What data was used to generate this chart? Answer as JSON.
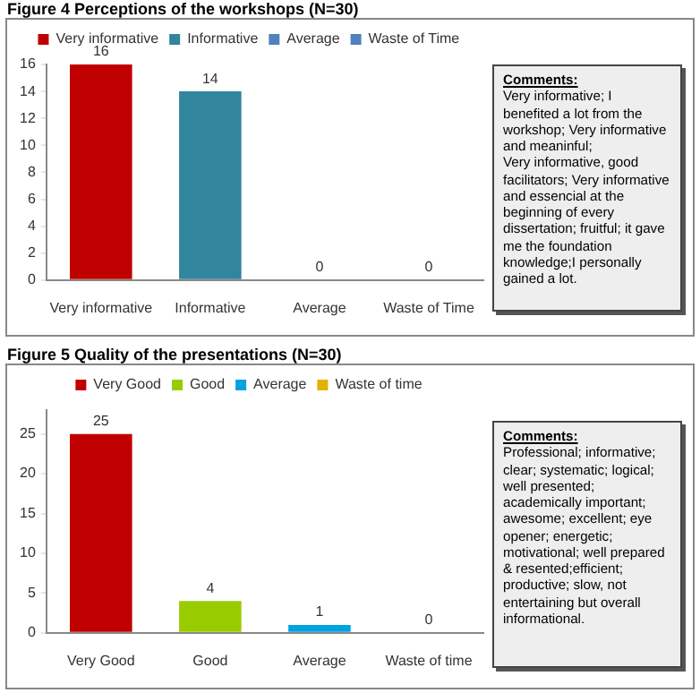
{
  "chart_data": [
    {
      "type": "bar",
      "title": "Figure 4 Perceptions of the workshops (N=30)",
      "categories": [
        "Very informative",
        "Informative",
        "Average",
        "Waste of Time"
      ],
      "series": [
        {
          "name": "Very informative",
          "color": "#c00000",
          "values": [
            16,
            null,
            null,
            null
          ]
        },
        {
          "name": "Informative",
          "color": "#31859c",
          "values": [
            null,
            14,
            null,
            null
          ]
        },
        {
          "name": "Average",
          "color": "#4f81bd",
          "values": [
            null,
            null,
            0,
            null
          ]
        },
        {
          "name": "Waste of Time",
          "color": "#4f81bd",
          "values": [
            null,
            null,
            null,
            0
          ]
        }
      ],
      "ylim": [
        0,
        16
      ],
      "yticks": [
        0,
        2,
        4,
        6,
        8,
        10,
        12,
        14,
        16
      ],
      "grid": false,
      "legend": "top",
      "data_labels": true,
      "annotations": [
        "Comments:",
        "Very informative; I benefited a lot from the workshop; Very informative and meaninful;",
        "Very informative, good facilitators; Very informative and essencial at the beginning of every dissertation; fruitful;  it gave me the foundation knowledge;I personally gained a lot."
      ]
    },
    {
      "type": "bar",
      "title": "Figure 5 Quality of the presentations (N=30)",
      "categories": [
        "Very Good",
        "Good",
        "Average",
        "Waste of time"
      ],
      "series": [
        {
          "name": "Very Good",
          "color": "#c00000",
          "values": [
            25,
            null,
            null,
            null
          ]
        },
        {
          "name": "Good",
          "color": "#99cc00",
          "values": [
            null,
            4,
            null,
            null
          ]
        },
        {
          "name": "Average",
          "color": "#00a2e0",
          "values": [
            null,
            null,
            1,
            null
          ]
        },
        {
          "name": "Waste of time",
          "color": "#e6b000",
          "values": [
            null,
            null,
            null,
            0
          ]
        }
      ],
      "ylim": [
        0,
        28
      ],
      "yticks": [
        0,
        5,
        10,
        15,
        20,
        25
      ],
      "grid": false,
      "legend": "top",
      "data_labels": true,
      "annotations": [
        "Comments:",
        "Professional; informative; clear; systematic; logical; well presented; academically important; awesome; excellent; eye opener; energetic; motivational; well prepared & resented;efficient; productive; slow, not entertaining but overall informational."
      ]
    }
  ]
}
